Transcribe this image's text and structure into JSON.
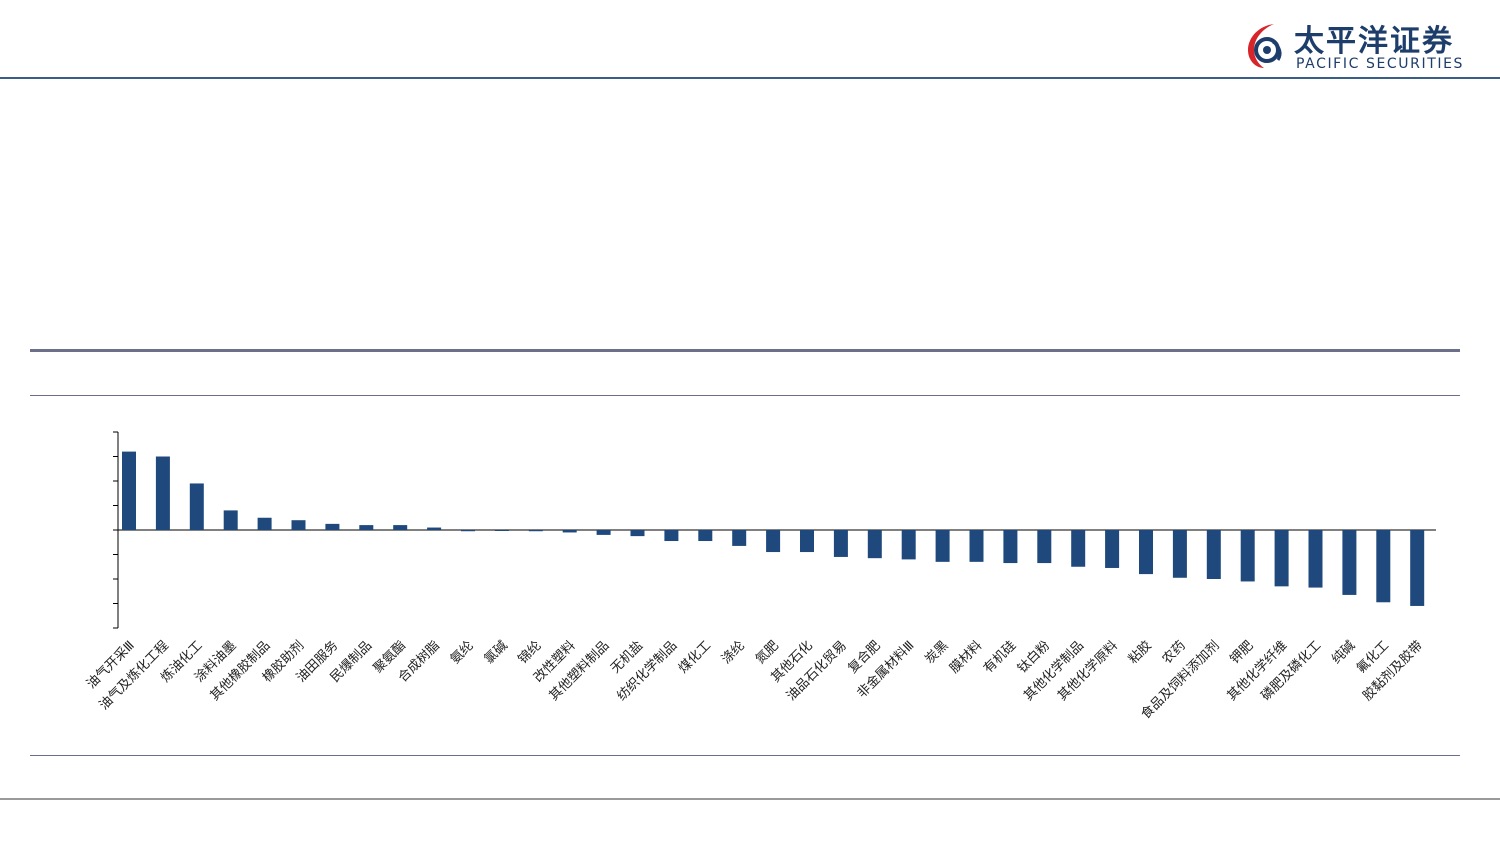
{
  "brand": {
    "name_cn": "太平洋证券",
    "name_en": "PACIFIC SECURITIES",
    "color": "#1d3d6a",
    "accent": "#d6262b"
  },
  "chart_data": {
    "type": "bar",
    "categories": [
      "油气开采Ⅲ",
      "油气及炼化工程",
      "炼油化工",
      "涂料油墨",
      "其他橡胶制品",
      "橡胶助剂",
      "油田服务",
      "民爆制品",
      "聚氨酯",
      "合成树脂",
      "氨纶",
      "氯碱",
      "锦纶",
      "改性塑料",
      "其他塑料制品",
      "无机盐",
      "纺织化学制品",
      "煤化工",
      "涤纶",
      "氮肥",
      "其他石化",
      "油品石化贸易",
      "复合肥",
      "非金属材料Ⅲ",
      "炭黑",
      "膜材料",
      "有机硅",
      "钛白粉",
      "其他化学制品",
      "其他化学原料",
      "粘胶",
      "农药",
      "食品及饲料添加剂",
      "钾肥",
      "其他化学纤维",
      "磷肥及磷化工",
      "纯碱",
      "氟化工",
      "胶黏剂及胶带"
    ],
    "values": [
      3.2,
      3.0,
      1.9,
      0.8,
      0.5,
      0.4,
      0.25,
      0.2,
      0.2,
      0.1,
      -0.05,
      -0.03,
      -0.05,
      -0.1,
      -0.2,
      -0.25,
      -0.45,
      -0.45,
      -0.65,
      -0.9,
      -0.9,
      -1.1,
      -1.15,
      -1.2,
      -1.3,
      -1.3,
      -1.35,
      -1.35,
      -1.5,
      -1.55,
      -1.8,
      -1.95,
      -2.0,
      -2.1,
      -2.3,
      -2.35,
      -2.65,
      -2.95,
      -3.1
    ],
    "ylim": [
      -4,
      4
    ],
    "ytick_step": 1,
    "bar_color": "#1f497d"
  }
}
